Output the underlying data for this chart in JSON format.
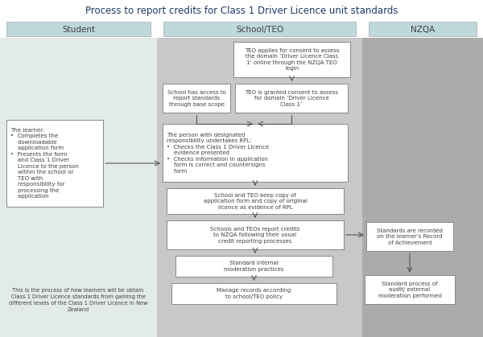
{
  "title": "Process to report credits for Class 1 Driver Licence unit standards",
  "title_color": "#1F3864",
  "title_fontsize": 8.5,
  "bg_color": "#FFFFFF",
  "col_student_bg": "#E2EAEA",
  "col_school_bg": "#C8C8C8",
  "col_nzqa_bg": "#ABABAB",
  "col_student_header_bg": "#BDD9DC",
  "col_school_header_bg": "#BDD9DC",
  "col_nzqa_header_bg": "#BDD9DC",
  "header_student": "Student",
  "header_school": "School/TEO",
  "header_nzqa": "NZQA",
  "box_teo_apply": "TEO applies for consent to assess\nthe domain ‘Driver Licence Class\n1’ online through the NZQA TEO\nlogin",
  "box_school_base": "School has access to\nreport standards\nthrough base scope",
  "box_teo_granted": "TEO is granted consent to assess\nfor domain ‘Driver Licence\nClass 1’",
  "box_learner": "The learner:\n•  Completes the\n    downloadable\n    application form\n•  Presents the form\n    and Class 1 Driver\n    Licence to the person\n    within the school or\n    TEO with\n    responsibility for\n    processing the\n    application",
  "box_rpl": "The person with designated\nresponsibility undertakes RPL:\n•  Checks the Class 1 Driver Licence\n    evidence presented\n•  Checks information in application\n    form is correct and countersigns\n    form",
  "box_keep_copy": "School and TEO keep copy of\napplication form and copy of original\nlicence as evidence of RPL",
  "box_report": "Schools and TEOs report credits\nto NZQA following their usual\ncredit reporting processes",
  "box_nzqa_record": "Standards are recorded\non the learner’s Record\nof Achievement",
  "box_moderation": "Standard internal\nmoderation practices",
  "box_nzqa_audit": "Standard process of\naudit/ external\nmoderation performed",
  "box_manage": "Manage records according\nto school/TEO policy",
  "footer_text": "This is the process of how learners will be obtain\nClass 1 Driver Licence standards from gaining the\ndifferent levels of the Class 1 Driver Licence in New\nZealand",
  "box_border_color": "#888888",
  "text_color": "#404040",
  "arrow_color": "#555555"
}
